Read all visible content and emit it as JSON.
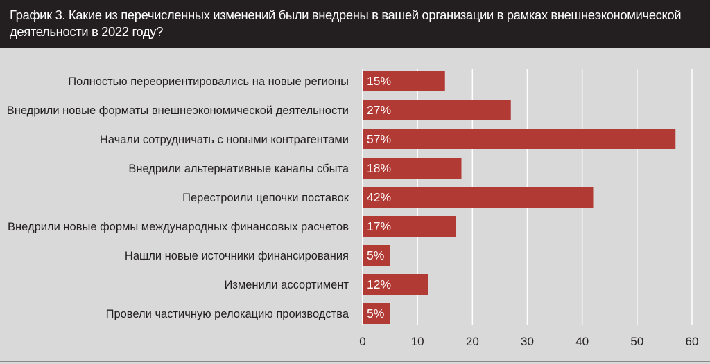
{
  "title": "График 3. Какие из перечисленных изменений были внедрены в вашей организации в рамках внешнеэкономической деятельности в 2022 году?",
  "chart_data": {
    "type": "bar",
    "orientation": "horizontal",
    "categories": [
      "Полностью переориентировались на новые регионы",
      "Внедрили новые форматы внешнеэкономической деятельности",
      "Начали сотрудничать с новыми контрагентами",
      "Внедрили альтернативные каналы сбыта",
      "Перестроили цепочки поставок",
      "Внедрили новые формы международных финансовых расчетов",
      "Нашли новые источники финансирования",
      "Изменили ассортимент",
      "Провели частичную релокацию производства"
    ],
    "values": [
      15,
      27,
      57,
      18,
      42,
      17,
      5,
      12,
      5
    ],
    "value_labels": [
      "15%",
      "27%",
      "57%",
      "18%",
      "42%",
      "17%",
      "5%",
      "12%",
      "5%"
    ],
    "xlim": [
      0,
      60
    ],
    "xticks": [
      0,
      10,
      20,
      30,
      40,
      50,
      60
    ],
    "xtick_labels": [
      "0",
      "10",
      "20",
      "30",
      "40",
      "50",
      "60"
    ],
    "grid": true,
    "colors": {
      "bar": "#b23a35",
      "grid": "#ffffff",
      "header_bg": "#231f20",
      "background": "#d9d9d9"
    }
  }
}
